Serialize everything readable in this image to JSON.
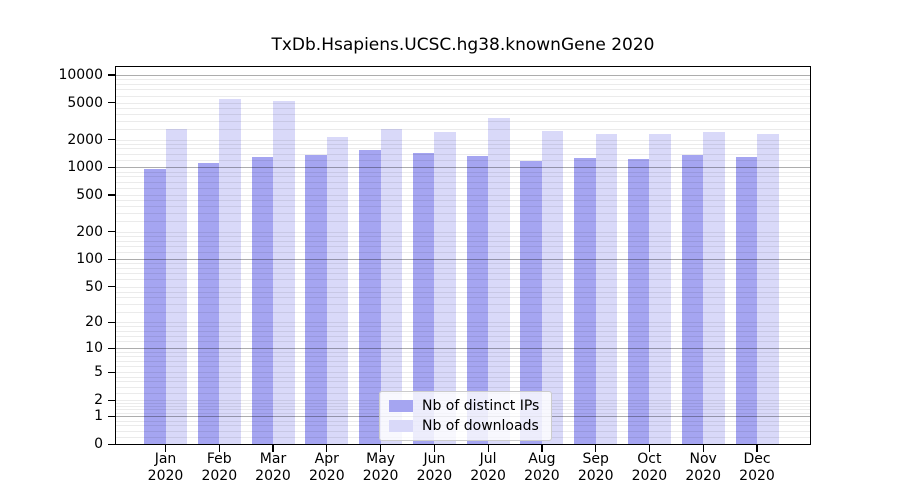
{
  "chart_data": {
    "type": "bar",
    "title": "TxDb.Hsapiens.UCSC.hg38.knownGene 2020",
    "x_axis": {
      "categories": [
        "Jan",
        "Feb",
        "Mar",
        "Apr",
        "May",
        "Jun",
        "Jul",
        "Aug",
        "Sep",
        "Oct",
        "Nov",
        "Dec"
      ],
      "sub_label": "2020"
    },
    "y_axis": {
      "scale": "log1p",
      "tick_values": [
        10000,
        5000,
        2000,
        1000,
        500,
        200,
        100,
        50,
        20,
        10,
        5,
        2,
        1,
        0
      ],
      "tick_labels": [
        "10000",
        "5000",
        "2000",
        "1000",
        "500",
        "200",
        "100",
        "50",
        "20",
        "10",
        "5",
        "2",
        "1",
        "0"
      ],
      "major_decades": [
        1,
        10,
        100,
        1000,
        10000
      ],
      "ylim": [
        0,
        12000
      ]
    },
    "series": [
      {
        "name": "Nb of distinct IPs",
        "color": "#a5a5f1",
        "values": [
          970,
          1100,
          1280,
          1350,
          1530,
          1430,
          1320,
          1170,
          1270,
          1230,
          1360,
          1280
        ]
      },
      {
        "name": "Nb of downloads",
        "color": "#d9d9f9",
        "values": [
          2580,
          5450,
          5230,
          2150,
          2620,
          2430,
          3390,
          2470,
          2280,
          2280,
          2390,
          2310
        ]
      }
    ],
    "legend_position": "lower center",
    "grid": "major+minor"
  },
  "colors": {
    "bar_distinct_ips": "#a5a5f1",
    "bar_downloads": "#d9d9f9",
    "major_grid": "rgba(0,0,0,0.32)",
    "minor_grid": "rgba(0,0,0,0.08)",
    "axis": "#000000"
  }
}
